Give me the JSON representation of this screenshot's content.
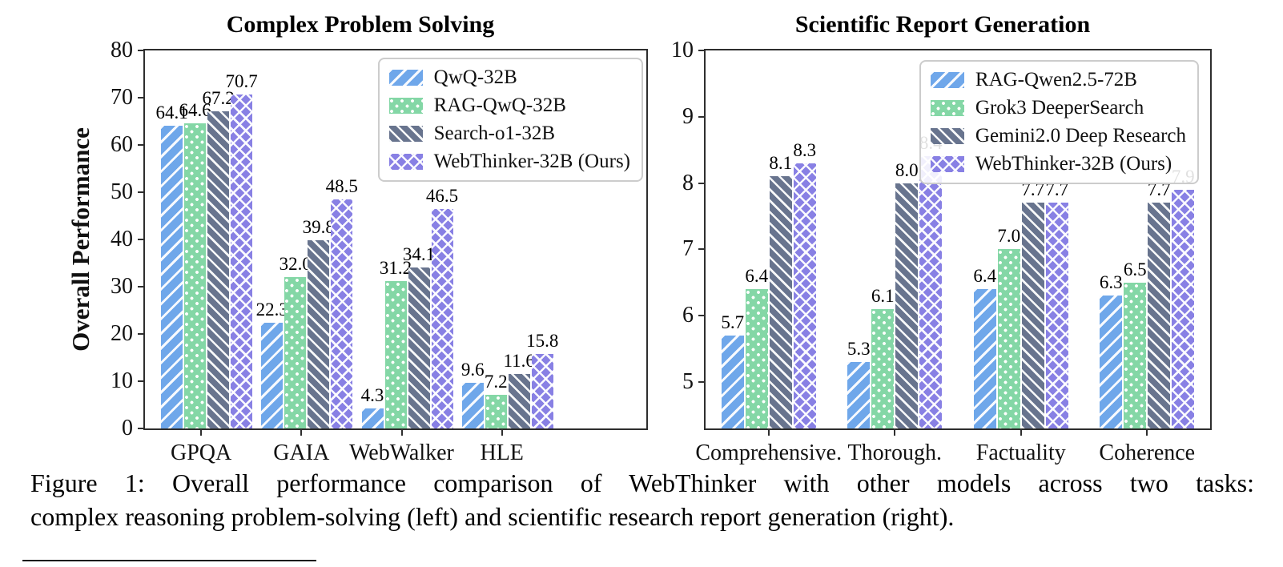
{
  "figure": {
    "caption_line1": "Figure 1: Overall performance comparison of WebThinker with other models across two tasks:",
    "caption_line2": "complex reasoning problem-solving (left) and scientific research report generation (right)."
  },
  "chart_data": [
    {
      "type": "bar",
      "title": "Complex Problem Solving",
      "ylabel": "Overall Performance",
      "xlabel": "",
      "categories": [
        "GPQA",
        "GAIA",
        "WebWalker",
        "HLE"
      ],
      "ylim": [
        0,
        80
      ],
      "yticks": [
        0,
        10,
        20,
        30,
        40,
        50,
        60,
        70,
        80
      ],
      "grid": false,
      "legend_position": "upper right inside plot",
      "series": [
        {
          "name": "QwQ-32B",
          "color": "#6FA7EA",
          "hatch": "diagonal-forward",
          "values": [
            64.1,
            22.3,
            4.3,
            9.6
          ]
        },
        {
          "name": "RAG-QwQ-32B",
          "color": "#84D7A6",
          "hatch": "white-dots",
          "values": [
            64.6,
            32.0,
            31.2,
            7.2
          ]
        },
        {
          "name": "Search-o1-32B",
          "color": "#68748E",
          "hatch": "diagonal-back",
          "values": [
            67.2,
            39.8,
            34.1,
            11.6
          ]
        },
        {
          "name": "WebThinker-32B (Ours)",
          "color": "#8880E4",
          "hatch": "crosshatch",
          "values": [
            70.7,
            48.5,
            46.5,
            15.8
          ]
        }
      ]
    },
    {
      "type": "bar",
      "title": "Scientific Report Generation",
      "ylabel": "",
      "xlabel": "",
      "categories": [
        "Comprehensive.",
        "Thorough.",
        "Factuality",
        "Coherence"
      ],
      "ylim": [
        4.3,
        10
      ],
      "yticks": [
        5,
        6,
        7,
        8,
        9,
        10
      ],
      "grid": false,
      "legend_position": "upper right inside plot",
      "series": [
        {
          "name": "RAG-Qwen2.5-72B",
          "color": "#6FA7EA",
          "hatch": "diagonal-forward",
          "values": [
            5.7,
            5.3,
            6.4,
            6.3
          ]
        },
        {
          "name": "Grok3 DeeperSearch",
          "color": "#84D7A6",
          "hatch": "white-dots",
          "values": [
            6.4,
            6.1,
            7.0,
            6.5
          ]
        },
        {
          "name": "Gemini2.0 Deep Research",
          "color": "#68748E",
          "hatch": "diagonal-back",
          "values": [
            8.1,
            8.0,
            7.7,
            7.7
          ]
        },
        {
          "name": "WebThinker-32B (Ours)",
          "color": "#8880E4",
          "hatch": "crosshatch",
          "values": [
            8.3,
            8.4,
            7.7,
            7.9
          ]
        }
      ]
    }
  ]
}
